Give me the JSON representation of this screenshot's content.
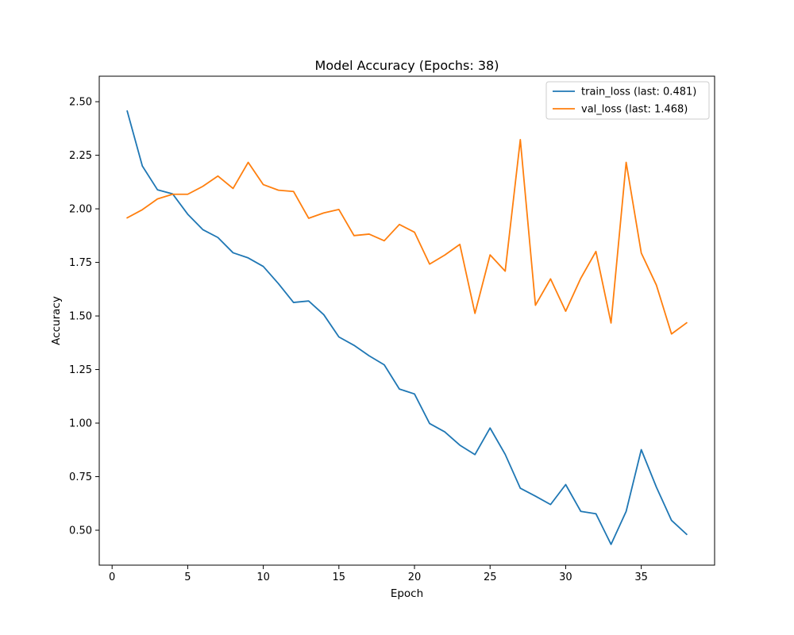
{
  "chart_data": {
    "type": "line",
    "title": "Model Accuracy (Epochs: 38)",
    "xlabel": "Epoch",
    "ylabel": "Accuracy",
    "xlim": [
      -0.85,
      39.85
    ],
    "ylim": [
      0.337,
      2.619
    ],
    "xticks": [
      0,
      5,
      10,
      15,
      20,
      25,
      30,
      35
    ],
    "yticks": [
      0.5,
      0.75,
      1.0,
      1.25,
      1.5,
      1.75,
      2.0,
      2.25,
      2.5
    ],
    "ytick_labels": [
      "0.50",
      "0.75",
      "1.00",
      "1.25",
      "1.50",
      "1.75",
      "2.00",
      "2.25",
      "2.50"
    ],
    "grid": false,
    "legend_position": "top-right",
    "x": [
      1,
      2,
      3,
      4,
      5,
      6,
      7,
      8,
      9,
      10,
      11,
      12,
      13,
      14,
      15,
      16,
      17,
      18,
      19,
      20,
      21,
      22,
      23,
      24,
      25,
      26,
      27,
      28,
      29,
      30,
      31,
      32,
      33,
      34,
      35,
      36,
      37,
      38
    ],
    "series": [
      {
        "name": "train_loss (last: 0.481)",
        "color": "#1f77b4",
        "values": [
          2.456,
          2.2,
          2.089,
          2.07,
          1.975,
          1.903,
          1.866,
          1.795,
          1.771,
          1.731,
          1.651,
          1.563,
          1.57,
          1.506,
          1.402,
          1.363,
          1.314,
          1.272,
          1.159,
          1.136,
          0.998,
          0.959,
          0.897,
          0.853,
          0.977,
          0.854,
          0.696,
          0.659,
          0.62,
          0.713,
          0.588,
          0.577,
          0.434,
          0.588,
          0.876,
          0.701,
          0.546,
          0.481
        ]
      },
      {
        "name": "val_loss (last: 1.468)",
        "color": "#ff7f0e",
        "values": [
          1.958,
          1.996,
          2.046,
          2.068,
          2.068,
          2.105,
          2.153,
          2.095,
          2.217,
          2.113,
          2.087,
          2.081,
          1.956,
          1.981,
          1.997,
          1.875,
          1.882,
          1.851,
          1.927,
          1.891,
          1.742,
          1.784,
          1.834,
          1.512,
          1.785,
          1.709,
          2.323,
          1.55,
          1.673,
          1.522,
          1.676,
          1.801,
          1.467,
          2.217,
          1.794,
          1.644,
          1.416,
          1.468
        ]
      }
    ]
  }
}
